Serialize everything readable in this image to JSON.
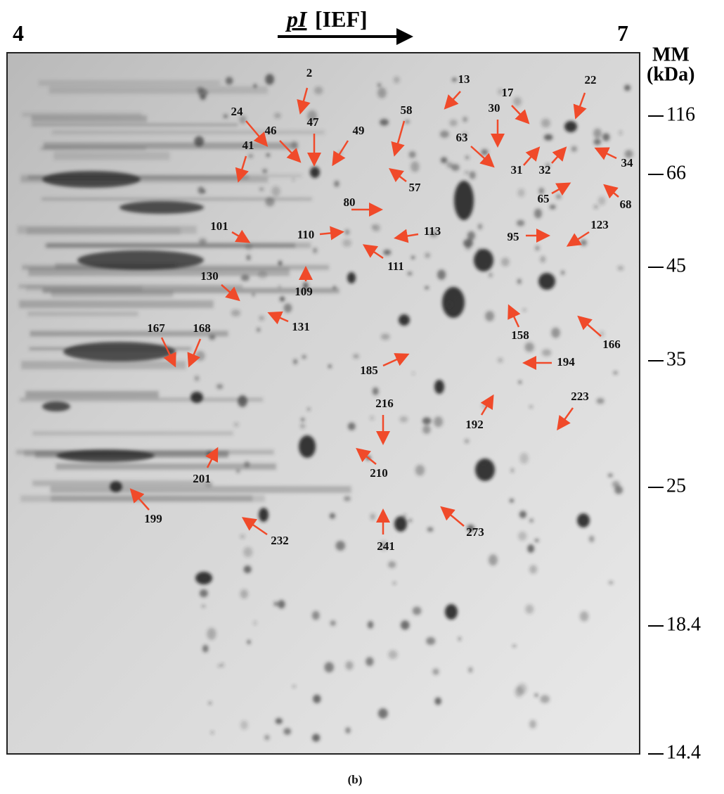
{
  "header": {
    "ph_min": "4",
    "ph_max": "7",
    "pi_label": "pI",
    "pi_unit": "[IEF]",
    "mass_label": "MM",
    "mass_unit": "(kDa)"
  },
  "mass_markers": [
    "116",
    "66",
    "45",
    "35",
    "25",
    "18.4",
    "14.4"
  ],
  "spots": [
    "2",
    "13",
    "17",
    "22",
    "30",
    "24",
    "46",
    "47",
    "49",
    "41",
    "58",
    "63",
    "31",
    "32",
    "34",
    "57",
    "65",
    "68",
    "80",
    "101",
    "110",
    "113",
    "111",
    "95",
    "123",
    "109",
    "130",
    "131",
    "158",
    "166",
    "167",
    "168",
    "185",
    "194",
    "216",
    "192",
    "223",
    "201",
    "210",
    "199",
    "232",
    "241",
    "273"
  ],
  "caption": "(b)"
}
